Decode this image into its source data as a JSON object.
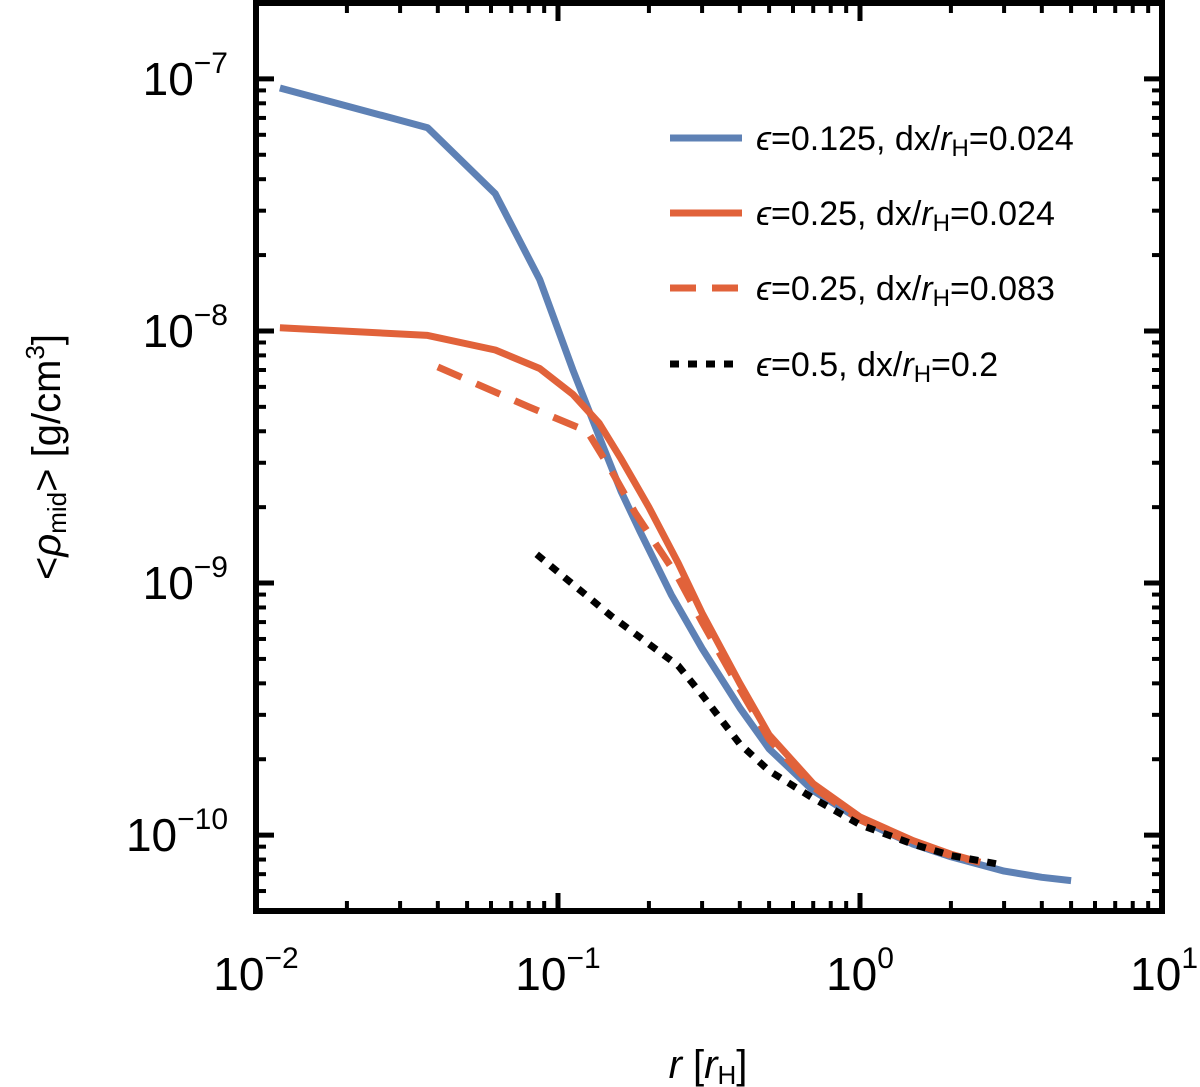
{
  "chart_data": {
    "type": "line",
    "title": "",
    "xscale": "log",
    "yscale": "log",
    "xlim": [
      0.01,
      10
    ],
    "ylim": [
      5e-11,
      2e-07
    ],
    "xlabel": {
      "var": "r",
      "open": "[",
      "unit": "r",
      "unit_sub": "H",
      "close": "]"
    },
    "ylabel": {
      "open": "<",
      "var": "ρ",
      "sub": "mid",
      "close": ">",
      "unit": "[g/cm",
      "unit_sup": "3",
      "unit_close": "]"
    },
    "x_ticks": [
      {
        "value": 0.01,
        "base": "10",
        "exp": "−2"
      },
      {
        "value": 0.1,
        "base": "10",
        "exp": "−1"
      },
      {
        "value": 1,
        "base": "10",
        "exp": "0"
      },
      {
        "value": 10,
        "base": "10",
        "exp": "1"
      }
    ],
    "y_ticks": [
      {
        "value": 1e-10,
        "base": "10",
        "exp": "−10"
      },
      {
        "value": 1e-09,
        "base": "10",
        "exp": "−9"
      },
      {
        "value": 1e-08,
        "base": "10",
        "exp": "−8"
      },
      {
        "value": 1e-07,
        "base": "10",
        "exp": "−7"
      }
    ],
    "legend_position": "top-right",
    "series": [
      {
        "name": "eps0125_dx0024",
        "label": {
          "eps": "ϵ",
          "eps_val": "=0.125, dx/",
          "r": "r",
          "sub": "H",
          "tail": "=0.024"
        },
        "color": "#5e81b5",
        "dash": "solid",
        "x": [
          0.012,
          0.037,
          0.062,
          0.087,
          0.112,
          0.137,
          0.162,
          0.187,
          0.237,
          0.3,
          0.4,
          0.5,
          0.7,
          1.0,
          1.5,
          2.0,
          3.0,
          4.0,
          5.0
        ],
        "y": [
          9.2e-08,
          6.4e-08,
          3.5e-08,
          1.6e-08,
          7e-09,
          3.8e-09,
          2.3e-09,
          1.6e-09,
          9e-10,
          5.5e-10,
          3.2e-10,
          2.2e-10,
          1.5e-10,
          1.15e-10,
          9.2e-11,
          8.2e-11,
          7.2e-11,
          6.8e-11,
          6.6e-11
        ]
      },
      {
        "name": "eps025_dx0024",
        "label": {
          "eps": "ϵ",
          "eps_val": "=0.25, dx/",
          "r": "r",
          "sub": "H",
          "tail": "=0.024"
        },
        "color": "#e1623a",
        "dash": "solid",
        "x": [
          0.012,
          0.037,
          0.062,
          0.087,
          0.112,
          0.137,
          0.162,
          0.2,
          0.25,
          0.3,
          0.4,
          0.5,
          0.7,
          1.0,
          1.5,
          2.0,
          2.5
        ],
        "y": [
          1.03e-08,
          9.6e-09,
          8.4e-09,
          7.1e-09,
          5.6e-09,
          4.3e-09,
          3.1e-09,
          2e-09,
          1.2e-09,
          7.6e-10,
          4e-10,
          2.5e-10,
          1.6e-10,
          1.18e-10,
          9.5e-11,
          8.4e-11,
          7.8e-11
        ]
      },
      {
        "name": "eps025_dx0083",
        "label": {
          "eps": "ϵ",
          "eps_val": "=0.25, dx/",
          "r": "r",
          "sub": "H",
          "tail": "=0.083"
        },
        "color": "#e1623a",
        "dash": "dashed",
        "x": [
          0.04,
          0.08,
          0.125,
          0.15,
          0.18,
          0.25,
          0.3,
          0.4,
          0.5,
          0.7,
          1.0,
          1.5,
          2.0,
          2.5
        ],
        "y": [
          7.2e-09,
          5e-09,
          4e-09,
          2.8e-09,
          1.9e-09,
          1.05e-09,
          7e-10,
          3.8e-10,
          2.4e-10,
          1.55e-10,
          1.15e-10,
          9.3e-11,
          8.3e-11,
          7.8e-11
        ]
      },
      {
        "name": "eps05_dx02",
        "label": {
          "eps": "ϵ",
          "eps_val": "=0.5, dx/",
          "r": "r",
          "sub": "H",
          "tail": "=0.2"
        },
        "color": "#000000",
        "dash": "dotted",
        "x": [
          0.085,
          0.15,
          0.25,
          0.3,
          0.4,
          0.5,
          0.7,
          1.0,
          1.5,
          2.0,
          3.0
        ],
        "y": [
          1.3e-09,
          7.4e-10,
          4.7e-10,
          3.6e-10,
          2.3e-10,
          1.8e-10,
          1.4e-10,
          1.1e-10,
          9.2e-11,
          8.3e-11,
          7.6e-11
        ]
      }
    ]
  }
}
